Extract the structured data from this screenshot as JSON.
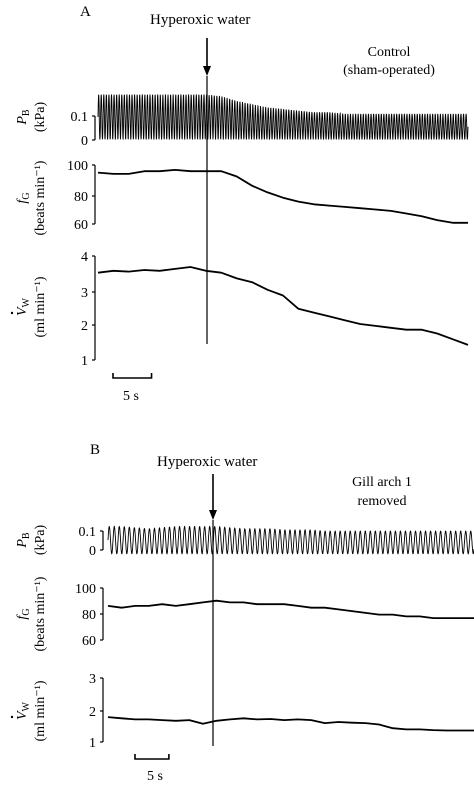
{
  "chart_data": [
    {
      "panel": "A",
      "type": "line",
      "event_label": "Hyperoxic water",
      "condition_label": [
        "Control",
        "(sham-operated)"
      ],
      "time_s": [
        0,
        2,
        4,
        6,
        8,
        10,
        12,
        14,
        16,
        18,
        20,
        22,
        24,
        26,
        28,
        30,
        32,
        34,
        36,
        38,
        40,
        42,
        44,
        46,
        48
      ],
      "event_time_s": 13.5,
      "scale_bar": {
        "label": "5 s",
        "duration_s": 5
      },
      "traces": [
        {
          "id": "PB",
          "ylabel_main": "P",
          "ylabel_sub": "B",
          "ylabel_unit": "(kPa)",
          "yticks": [
            "0.1",
            "0"
          ],
          "ylim": [
            -0.02,
            0.16
          ],
          "oscillation_freq_hz": 3.0,
          "amplitude_kpa": [
            0.14,
            0.14,
            0.14,
            0.14,
            0.14,
            0.14,
            0.14,
            0.14,
            0.135,
            0.12,
            0.11,
            0.1,
            0.095,
            0.09,
            0.085,
            0.085,
            0.08,
            0.08,
            0.08,
            0.08,
            0.08,
            0.08,
            0.08,
            0.08,
            0.08
          ]
        },
        {
          "id": "fG",
          "ylabel_main": "f",
          "ylabel_sub": "G",
          "ylabel_unit": "(beats min⁻¹)",
          "yticks": [
            "100",
            "80",
            "60"
          ],
          "ylim": [
            50,
            103
          ],
          "values": [
            95,
            94,
            94,
            96,
            96,
            97,
            96,
            96,
            96,
            92,
            85,
            80,
            76,
            73,
            71,
            70,
            69,
            68,
            67,
            66,
            64,
            62,
            59,
            57,
            57
          ]
        },
        {
          "id": "VW",
          "ylabel_main": "V",
          "ylabel_sub": "W",
          "ylabel_unit": "(ml min⁻¹)",
          "yticks": [
            "4",
            "3",
            "2",
            "1"
          ],
          "ylim": [
            1,
            4
          ],
          "values": [
            3.35,
            3.4,
            3.38,
            3.42,
            3.4,
            3.45,
            3.5,
            3.4,
            3.35,
            3.2,
            3.1,
            2.9,
            2.75,
            2.4,
            2.3,
            2.2,
            2.1,
            2.0,
            1.95,
            1.9,
            1.85,
            1.85,
            1.75,
            1.6,
            1.45
          ]
        }
      ]
    },
    {
      "panel": "B",
      "type": "line",
      "event_label": "Hyperoxic water",
      "condition_label": [
        "Gill arch 1",
        "removed"
      ],
      "time_s": [
        0,
        2,
        4,
        6,
        8,
        10,
        12,
        14,
        16,
        18,
        20,
        22,
        24,
        26,
        28,
        30,
        32,
        34,
        36,
        38,
        40,
        42,
        44,
        46,
        48,
        50,
        52,
        54
      ],
      "event_time_s": 15,
      "scale_bar": {
        "label": "5 s",
        "duration_s": 5
      },
      "traces": [
        {
          "id": "PB",
          "ylabel_main": "P",
          "ylabel_sub": "B",
          "ylabel_unit": "(kPa)",
          "yticks": [
            "0.1",
            "0"
          ],
          "ylim": [
            -0.01,
            0.14
          ],
          "oscillation_freq_hz": 1.35,
          "amplitude_kpa": [
            0.12,
            0.12,
            0.115,
            0.11,
            0.115,
            0.12,
            0.12,
            0.12,
            0.12,
            0.115,
            0.11,
            0.11,
            0.11,
            0.105,
            0.105,
            0.105,
            0.1,
            0.1,
            0.1,
            0.1,
            0.1,
            0.1,
            0.1,
            0.1,
            0.1,
            0.1,
            0.1,
            0.1
          ]
        },
        {
          "id": "fG",
          "ylabel_main": "f",
          "ylabel_sub": "G",
          "ylabel_unit": "(beats min⁻¹)",
          "yticks": [
            "100",
            "80",
            "60"
          ],
          "ylim": [
            55,
            102
          ],
          "values": [
            86,
            85,
            86,
            86,
            87,
            86,
            87,
            88,
            89,
            88,
            88,
            87,
            87,
            87,
            86,
            85,
            85,
            84,
            83,
            82,
            81,
            81,
            80,
            80,
            79,
            79,
            79,
            79
          ]
        },
        {
          "id": "VW",
          "ylabel_main": "V",
          "ylabel_sub": "W",
          "ylabel_unit": "(ml min⁻¹)",
          "yticks": [
            "3",
            "2",
            "1"
          ],
          "ylim": [
            1,
            3
          ],
          "values": [
            1.78,
            1.75,
            1.72,
            1.72,
            1.7,
            1.68,
            1.7,
            1.6,
            1.68,
            1.72,
            1.75,
            1.72,
            1.73,
            1.7,
            1.72,
            1.7,
            1.62,
            1.65,
            1.63,
            1.62,
            1.58,
            1.48,
            1.45,
            1.45,
            1.43,
            1.42,
            1.42,
            1.42
          ]
        }
      ]
    }
  ]
}
